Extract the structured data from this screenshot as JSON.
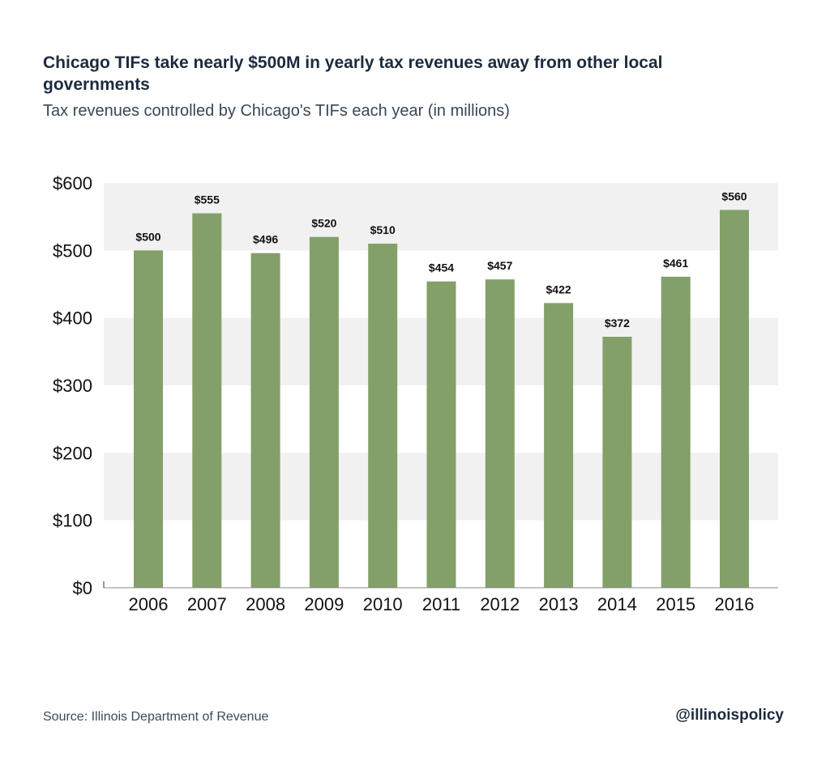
{
  "title": "Chicago TIFs take nearly $500M in yearly tax revenues away from other local governments",
  "subtitle": "Tax revenues controlled by Chicago's TIFs each year (in millions)",
  "source": "Source: Illinois Department of Revenue",
  "handle": "@illinoispolicy",
  "colors": {
    "bar": "#82a068",
    "band": "#f1f1f1",
    "axis_text": "#111111",
    "title": "#1c2b3d"
  },
  "chart_data": {
    "type": "bar",
    "title": "Chicago TIFs take nearly $500M in yearly tax revenues away from other local governments",
    "subtitle": "Tax revenues controlled by Chicago's TIFs each year (in millions)",
    "xlabel": "",
    "ylabel": "",
    "categories": [
      "2006",
      "2007",
      "2008",
      "2009",
      "2010",
      "2011",
      "2012",
      "2013",
      "2014",
      "2015",
      "2016"
    ],
    "values": [
      500,
      555,
      496,
      520,
      510,
      454,
      457,
      422,
      372,
      461,
      560
    ],
    "data_labels": [
      "$500",
      "$555",
      "$496",
      "$520",
      "$510",
      "$454",
      "$457",
      "$422",
      "$372",
      "$461",
      "$560"
    ],
    "ylim": [
      0,
      600
    ],
    "yticks": [
      0,
      100,
      200,
      300,
      400,
      500,
      600
    ],
    "ytick_labels": [
      "$0",
      "$100",
      "$200",
      "$300",
      "$400",
      "$500",
      "$600"
    ],
    "grid": "alternating horizontal bands",
    "legend": "none"
  }
}
